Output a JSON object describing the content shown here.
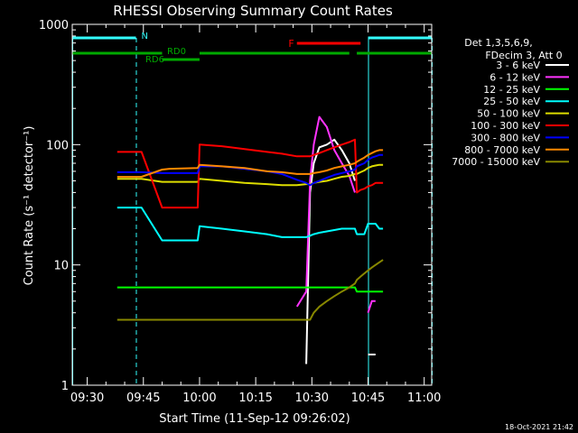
{
  "chart_data": {
    "type": "line",
    "title": "RHESSI Observing Summary Count Rates",
    "xlabel": "Start Time (11-Sep-12 09:26:02)",
    "ylabel": "Count Rate (s⁻¹ detector⁻¹)",
    "yscale": "log",
    "ylim": [
      1,
      1000
    ],
    "xlim_minutes_after_0926": [
      0,
      96
    ],
    "xticks": [
      "09:30",
      "09:45",
      "10:00",
      "10:15",
      "10:30",
      "10:45",
      "11:00"
    ],
    "xtick_minutes": [
      4,
      19,
      34,
      49,
      64,
      79,
      94
    ],
    "yticks": [
      "1",
      "10",
      "100",
      "1000"
    ],
    "ytick_values": [
      1,
      10,
      100,
      1000
    ],
    "legend_header": [
      "Det 1,3,5,6,9,",
      "FDecim 3, Att 0"
    ],
    "legend_placement": "right",
    "timestamp": "18-Oct-2021 21:42",
    "flags": {
      "labels": {
        "N": "N",
        "F": "F",
        "RD0": "RD0",
        "RD6": "RD6"
      },
      "night": [
        [
          0,
          17
        ],
        [
          79,
          96
        ]
      ],
      "flare": [
        [
          60,
          77
        ]
      ],
      "saa_rd0": [
        [
          0,
          24
        ],
        [
          34,
          74
        ],
        [
          76,
          96
        ]
      ],
      "saa_rd6": [
        [
          24,
          34
        ]
      ]
    },
    "x_minutes": [
      12,
      16,
      18.5,
      24,
      26,
      33.5,
      34,
      40,
      46,
      52,
      56,
      60,
      62.5,
      63.5,
      64.5,
      66,
      68,
      70,
      72,
      74,
      75.5,
      76,
      77,
      78,
      79,
      80,
      81,
      82,
      83
    ],
    "series": [
      {
        "name": "3 - 6 keV",
        "color": "#ffffff",
        "values": [
          null,
          null,
          null,
          null,
          null,
          null,
          null,
          null,
          null,
          null,
          null,
          null,
          1.5,
          40,
          70,
          95,
          100,
          110,
          90,
          70,
          50,
          null,
          null,
          null,
          1.8,
          1.8,
          1.8,
          null,
          null
        ]
      },
      {
        "name": "6 - 12 keV",
        "color": "#ff33ff",
        "values": [
          null,
          null,
          null,
          null,
          null,
          null,
          null,
          null,
          null,
          null,
          null,
          4.5,
          6,
          50,
          100,
          170,
          140,
          90,
          70,
          55,
          40,
          null,
          null,
          null,
          4,
          5,
          5,
          null,
          null
        ]
      },
      {
        "name": "12 - 25 keV",
        "color": "#00ff00",
        "values": [
          6.5,
          6.5,
          6.5,
          6.5,
          6.5,
          6.5,
          6.5,
          6.5,
          6.5,
          6.5,
          6.5,
          6.5,
          6.5,
          6.5,
          6.5,
          6.5,
          6.5,
          6.5,
          6.5,
          6.5,
          6.5,
          6,
          6,
          6,
          6,
          6,
          6,
          6,
          6
        ]
      },
      {
        "name": "25 - 50 keV",
        "color": "#00ffff",
        "values": [
          30,
          30,
          30,
          16,
          16,
          16,
          21,
          20,
          19,
          18,
          17,
          17,
          17,
          17.5,
          18,
          18.5,
          19,
          19.5,
          20,
          20,
          20,
          18,
          18,
          18,
          22,
          22,
          22,
          20,
          20
        ]
      },
      {
        "name": "50 - 100 keV",
        "color": "#dddd00",
        "values": [
          52,
          52,
          52,
          49,
          49,
          49,
          52,
          50,
          48,
          47,
          46,
          46,
          47,
          47,
          48,
          49,
          50,
          52,
          54,
          55,
          57,
          57,
          59,
          61,
          64,
          66,
          67,
          68,
          68
        ]
      },
      {
        "name": "100 - 300 keV",
        "color": "#ff0000",
        "values": [
          87,
          87,
          87,
          30,
          30,
          30,
          100,
          97,
          92,
          87,
          84,
          80,
          80,
          80,
          82,
          85,
          90,
          95,
          100,
          105,
          110,
          40,
          42,
          43,
          45,
          46,
          48,
          48,
          48
        ]
      },
      {
        "name": "300 - 800 keV",
        "color": "#0000ff",
        "values": [
          59,
          59,
          59,
          58,
          58,
          58,
          66,
          66,
          63,
          60,
          57,
          51,
          48,
          46,
          48,
          50,
          53,
          56,
          58,
          60,
          62,
          66,
          68,
          70,
          75,
          78,
          80,
          82,
          82
        ]
      },
      {
        "name": "800 - 7000 keV",
        "color": "#ff8800",
        "values": [
          54,
          54,
          54,
          62,
          63,
          64,
          68,
          66,
          64,
          60,
          59,
          57,
          57,
          57,
          58,
          59,
          61,
          64,
          66,
          68,
          70,
          72,
          75,
          78,
          82,
          85,
          88,
          90,
          90
        ]
      },
      {
        "name": "7000 - 15000 keV",
        "color": "#888800",
        "values": [
          3.5,
          3.5,
          3.5,
          3.5,
          3.5,
          3.5,
          3.5,
          3.5,
          3.5,
          3.5,
          3.5,
          3.5,
          3.5,
          3.5,
          4,
          4.5,
          5,
          5.5,
          6,
          6.5,
          7,
          7.5,
          8,
          8.5,
          9,
          9.5,
          10,
          10.5,
          11
        ]
      }
    ]
  }
}
